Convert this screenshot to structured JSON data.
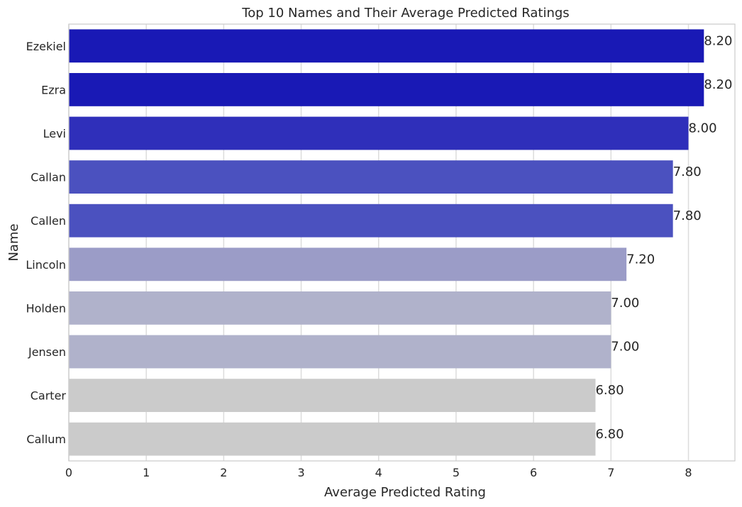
{
  "chart_data": {
    "type": "bar",
    "orientation": "horizontal",
    "title": "Top 10 Names and Their Average Predicted Ratings",
    "xlabel": "Average Predicted Rating",
    "ylabel": "Name",
    "xlim": [
      0,
      8.6
    ],
    "xticks": [
      0,
      1,
      2,
      3,
      4,
      5,
      6,
      7,
      8
    ],
    "grid": true,
    "categories": [
      "Ezekiel",
      "Ezra",
      "Levi",
      "Callan",
      "Callen",
      "Lincoln",
      "Holden",
      "Jensen",
      "Carter",
      "Callum"
    ],
    "values": [
      8.2,
      8.2,
      8.0,
      7.8,
      7.8,
      7.2,
      7.0,
      7.0,
      6.8,
      6.8
    ],
    "value_labels": [
      "8.20",
      "8.20",
      "8.00",
      "7.80",
      "7.80",
      "7.20",
      "7.00",
      "7.00",
      "6.80",
      "6.80"
    ],
    "colors": [
      "#1919b5",
      "#1919b5",
      "#2f2fba",
      "#4b51bf",
      "#4b51bf",
      "#9b9cc7",
      "#b0b2cb",
      "#b0b2cb",
      "#cbcbcb",
      "#cbcbcb"
    ]
  }
}
